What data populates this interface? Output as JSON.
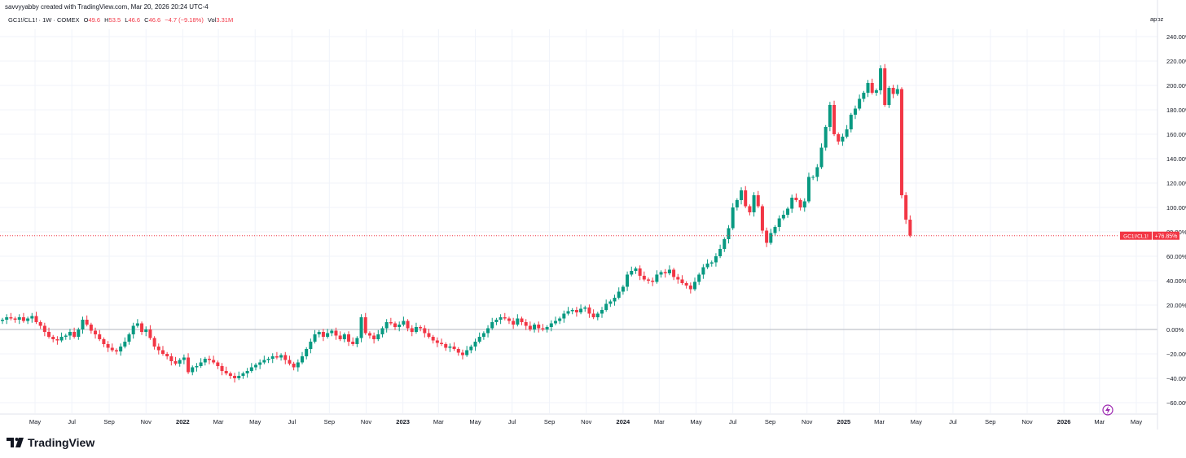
{
  "header": {
    "credit": "savvyyabby created with TradingView.com, Mar 20, 2026 20:24 UTC-4"
  },
  "ticker": {
    "symbol": "GC1!/CL1! · 1W · COMEX",
    "o_label": "O",
    "o_value": "49.6",
    "h_label": "H",
    "h_value": "53.5",
    "l_label": "L",
    "l_value": "46.6",
    "c_label": "C",
    "c_value": "46.6",
    "change": "−4.7 (−9.18%)",
    "vol_label": "Vol",
    "vol_value": "3.31M"
  },
  "scale_mode": "apoz",
  "brand": {
    "name": "TradingView"
  },
  "price_label": {
    "symbol": "GC1!/CL1!",
    "value": "+76.85%"
  },
  "colors": {
    "up": "#089981",
    "down": "#f23645",
    "grid": "#f0f3fa",
    "axis_text": "#131722",
    "zero_line": "#b2b5be"
  },
  "icons": {
    "flash": "lightning-icon",
    "logo": "tradingview-logo-icon"
  },
  "chart_data": {
    "type": "candlestick",
    "title": "",
    "ylabel": "",
    "y_unit": "%",
    "ylim": [
      -67,
      251
    ],
    "y_ticks": [
      "240.00%",
      "220.00%",
      "200.00%",
      "180.00%",
      "160.00%",
      "140.00%",
      "120.00%",
      "100.00%",
      "80.00%",
      "60.00%",
      "40.00%",
      "20.00%",
      "0.00%",
      "−20.00%",
      "−40.00%",
      "−60.00%"
    ],
    "y_tick_values": [
      240,
      220,
      200,
      180,
      160,
      140,
      120,
      100,
      80,
      60,
      40,
      20,
      0,
      -20,
      -40,
      -60
    ],
    "x_ticks": [
      {
        "label": "May",
        "date": "2021-05-01",
        "bold": false
      },
      {
        "label": "Jul",
        "date": "2021-07-01",
        "bold": false
      },
      {
        "label": "Sep",
        "date": "2021-09-01",
        "bold": false
      },
      {
        "label": "Nov",
        "date": "2021-11-01",
        "bold": false
      },
      {
        "label": "2022",
        "date": "2022-01-01",
        "bold": true
      },
      {
        "label": "Mar",
        "date": "2022-03-01",
        "bold": false
      },
      {
        "label": "May",
        "date": "2022-05-01",
        "bold": false
      },
      {
        "label": "Jul",
        "date": "2022-07-01",
        "bold": false
      },
      {
        "label": "Sep",
        "date": "2022-09-01",
        "bold": false
      },
      {
        "label": "Nov",
        "date": "2022-11-01",
        "bold": false
      },
      {
        "label": "2023",
        "date": "2023-01-01",
        "bold": true
      },
      {
        "label": "Mar",
        "date": "2023-03-01",
        "bold": false
      },
      {
        "label": "May",
        "date": "2023-05-01",
        "bold": false
      },
      {
        "label": "Jul",
        "date": "2023-07-01",
        "bold": false
      },
      {
        "label": "Sep",
        "date": "2023-09-01",
        "bold": false
      },
      {
        "label": "Nov",
        "date": "2023-11-01",
        "bold": false
      },
      {
        "label": "2024",
        "date": "2024-01-01",
        "bold": true
      },
      {
        "label": "Mar",
        "date": "2024-03-01",
        "bold": false
      },
      {
        "label": "May",
        "date": "2024-05-01",
        "bold": false
      },
      {
        "label": "Jul",
        "date": "2024-07-01",
        "bold": false
      },
      {
        "label": "Sep",
        "date": "2024-09-01",
        "bold": false
      },
      {
        "label": "Nov",
        "date": "2024-11-01",
        "bold": false
      },
      {
        "label": "2025",
        "date": "2025-01-01",
        "bold": true
      },
      {
        "label": "Mar",
        "date": "2025-03-01",
        "bold": false
      },
      {
        "label": "May",
        "date": "2025-05-01",
        "bold": false
      },
      {
        "label": "Jul",
        "date": "2025-07-01",
        "bold": false
      },
      {
        "label": "Sep",
        "date": "2025-09-01",
        "bold": false
      },
      {
        "label": "Nov",
        "date": "2025-11-01",
        "bold": false
      },
      {
        "label": "2026",
        "date": "2026-01-01",
        "bold": true
      },
      {
        "label": "Mar",
        "date": "2026-03-01",
        "bold": false
      },
      {
        "label": "May",
        "date": "2026-05-01",
        "bold": false
      }
    ],
    "current_value": 76.85,
    "zero_line": 0,
    "candles_start_date": "2021-03-08",
    "candles_interval": "1W",
    "close_series": [
      8,
      10,
      9,
      8,
      10,
      7,
      9,
      11,
      6,
      3,
      -2,
      -6,
      -8,
      -9,
      -6,
      -5,
      -2,
      -6,
      0,
      8,
      4,
      -1,
      -4,
      -8,
      -12,
      -15,
      -17,
      -18,
      -14,
      -10,
      -4,
      3,
      5,
      -2,
      0,
      -7,
      -14,
      -17,
      -20,
      -22,
      -26,
      -28,
      -25,
      -23,
      -35,
      -31,
      -30,
      -27,
      -24,
      -25,
      -27,
      -30,
      -34,
      -36,
      -38,
      -40,
      -38,
      -36,
      -34,
      -31,
      -29,
      -27,
      -25,
      -24,
      -22,
      -23,
      -21,
      -25,
      -28,
      -31,
      -27,
      -22,
      -16,
      -10,
      -4,
      -2,
      -6,
      -3,
      -1,
      -5,
      -8,
      -4,
      -10,
      -12,
      -7,
      10,
      -3,
      -5,
      -8,
      -4,
      1,
      6,
      5,
      2,
      4,
      7,
      1,
      -2,
      2,
      1,
      -3,
      -6,
      -9,
      -11,
      -12,
      -15,
      -14,
      -16,
      -19,
      -21,
      -17,
      -14,
      -10,
      -6,
      -3,
      1,
      6,
      8,
      10,
      9,
      7,
      4,
      9,
      6,
      3,
      0,
      4,
      1,
      0,
      2,
      5,
      7,
      9,
      13,
      15,
      16,
      14,
      17,
      18,
      13,
      10,
      13,
      16,
      21,
      23,
      26,
      31,
      35,
      45,
      48,
      50,
      44,
      41,
      40,
      39,
      45,
      47,
      46,
      49,
      43,
      41,
      38,
      36,
      33,
      39,
      45,
      51,
      54,
      55,
      60,
      66,
      74,
      83,
      100,
      106,
      114,
      101,
      96,
      110,
      101,
      81,
      71,
      79,
      84,
      91,
      94,
      99,
      108,
      106,
      100,
      105,
      125,
      125,
      133,
      149,
      166,
      184,
      160,
      154,
      158,
      164,
      176,
      181,
      189,
      194,
      202,
      194,
      196,
      214,
      184,
      198,
      193,
      197,
      110,
      90,
      77
    ],
    "note_series": "close_series values are weekly closes estimated from the chart in % (apoz scale)"
  }
}
